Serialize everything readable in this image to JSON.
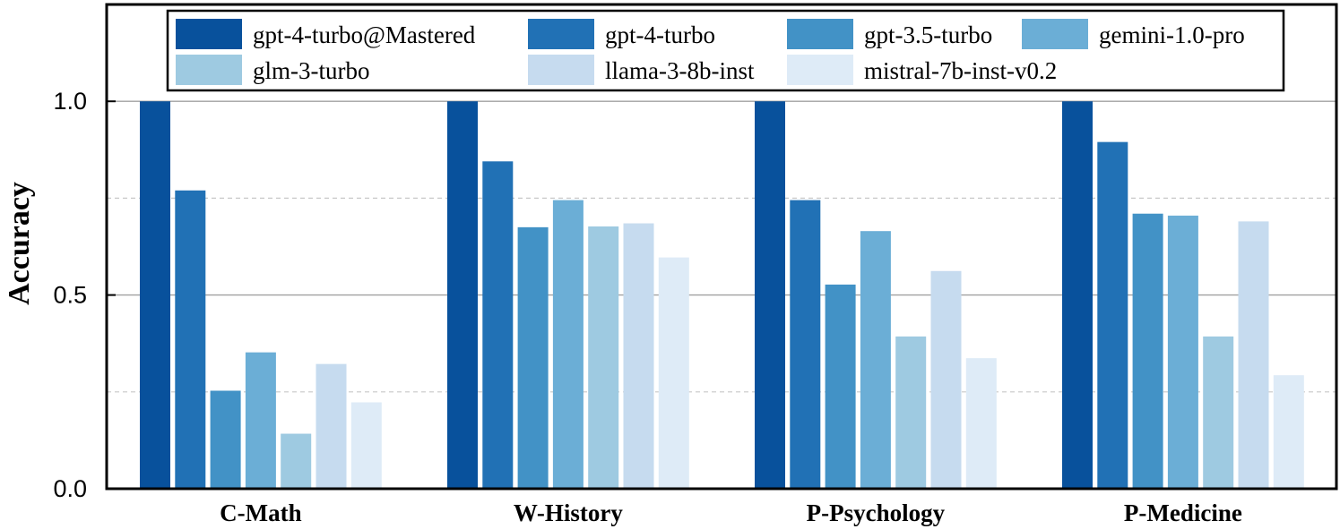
{
  "chart_data": {
    "type": "bar",
    "ylabel": "Accuracy",
    "ylim": [
      0,
      1.25
    ],
    "yticks": [
      {
        "value": 0,
        "label": "0.0"
      },
      {
        "value": 0.5,
        "label": "0.5"
      },
      {
        "value": 1.0,
        "label": "1.0"
      }
    ],
    "minor_gridlines": [
      0.25,
      0.75
    ],
    "major_gridlines": [
      0.5,
      1.0
    ],
    "legend_placement": "top",
    "categories": [
      "C-Math",
      "W-History",
      "P-Psychology",
      "P-Medicine"
    ],
    "series": [
      {
        "name": "gpt-4-turbo@Mastered",
        "color": "#08519c",
        "values": [
          1.0,
          1.0,
          1.0,
          1.0
        ]
      },
      {
        "name": "gpt-4-turbo",
        "color": "#2171b5",
        "values": [
          0.77,
          0.845,
          0.745,
          0.895
        ]
      },
      {
        "name": "gpt-3.5-turbo",
        "color": "#4292c6",
        "values": [
          0.253,
          0.675,
          0.527,
          0.71
        ]
      },
      {
        "name": "gemini-1.0-pro",
        "color": "#6baed6",
        "values": [
          0.352,
          0.745,
          0.665,
          0.705
        ]
      },
      {
        "name": "glm-3-turbo",
        "color": "#9ecae1",
        "values": [
          0.142,
          0.677,
          0.393,
          0.393
        ]
      },
      {
        "name": "llama-3-8b-inst",
        "color": "#c6dbef",
        "values": [
          0.322,
          0.685,
          0.562,
          0.69
        ]
      },
      {
        "name": "mistral-7b-inst-v0.2",
        "color": "#deebf7",
        "values": [
          0.223,
          0.597,
          0.337,
          0.293
        ]
      }
    ]
  }
}
